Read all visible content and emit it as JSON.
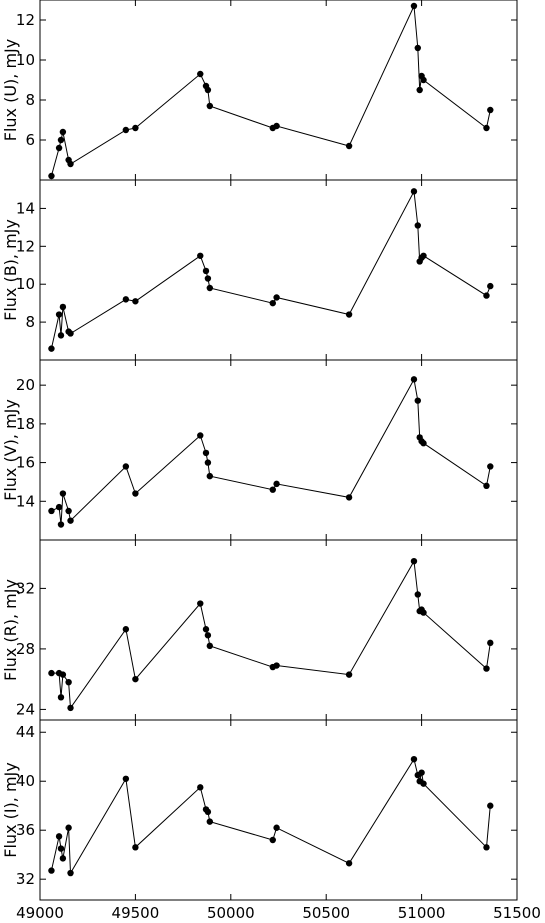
{
  "chart_data": [
    {
      "type": "line",
      "ylabel": "Flux (U), mJy",
      "xlim": [
        49000,
        51500
      ],
      "ylim": [
        4,
        13
      ],
      "yticks": [
        6,
        8,
        10,
        12
      ],
      "x": [
        49060,
        49100,
        49110,
        49120,
        49150,
        49160,
        49450,
        49500,
        49840,
        49870,
        49880,
        49890,
        50220,
        50240,
        50620,
        50960,
        50980,
        50990,
        51000,
        51010,
        51340,
        51360
      ],
      "y": [
        4.2,
        5.6,
        6.0,
        6.4,
        5.0,
        4.8,
        6.5,
        6.6,
        9.3,
        8.7,
        8.5,
        7.7,
        6.6,
        6.7,
        5.7,
        12.7,
        10.6,
        8.5,
        9.2,
        9.0,
        6.6,
        7.5
      ]
    },
    {
      "type": "line",
      "ylabel": "Flux (B), mJy",
      "xlim": [
        49000,
        51500
      ],
      "ylim": [
        6,
        15.5
      ],
      "yticks": [
        8,
        10,
        12,
        14
      ],
      "x": [
        49060,
        49100,
        49110,
        49120,
        49150,
        49160,
        49450,
        49500,
        49840,
        49870,
        49880,
        49890,
        50220,
        50240,
        50620,
        50960,
        50980,
        50990,
        51000,
        51010,
        51340,
        51360
      ],
      "y": [
        6.6,
        8.4,
        7.3,
        8.8,
        7.5,
        7.4,
        9.2,
        9.1,
        11.5,
        10.7,
        10.3,
        9.8,
        9.0,
        9.3,
        8.4,
        14.9,
        13.1,
        11.2,
        11.4,
        11.5,
        9.4,
        9.9
      ]
    },
    {
      "type": "line",
      "ylabel": "Flux (V), mJy",
      "xlim": [
        49000,
        51500
      ],
      "ylim": [
        12,
        21.3
      ],
      "yticks": [
        14,
        16,
        18,
        20
      ],
      "x": [
        49060,
        49100,
        49110,
        49120,
        49150,
        49160,
        49450,
        49500,
        49840,
        49870,
        49880,
        49890,
        50220,
        50240,
        50620,
        50960,
        50980,
        50990,
        51000,
        51010,
        51340,
        51360
      ],
      "y": [
        13.5,
        13.7,
        12.8,
        14.4,
        13.5,
        13.0,
        15.8,
        14.4,
        17.4,
        16.5,
        16.0,
        15.3,
        14.6,
        14.9,
        14.2,
        20.3,
        19.2,
        17.3,
        17.1,
        17.0,
        14.8,
        15.8
      ]
    },
    {
      "type": "line",
      "ylabel": "Flux (R), mJy",
      "xlim": [
        49000,
        51500
      ],
      "ylim": [
        23.3,
        35.2
      ],
      "yticks": [
        24,
        28,
        32
      ],
      "x": [
        49060,
        49100,
        49110,
        49120,
        49150,
        49160,
        49450,
        49500,
        49840,
        49870,
        49880,
        49890,
        50220,
        50240,
        50620,
        50960,
        50980,
        50990,
        51000,
        51010,
        51340,
        51360
      ],
      "y": [
        26.4,
        26.4,
        24.8,
        26.3,
        25.8,
        24.1,
        29.3,
        26.0,
        31.0,
        29.3,
        28.9,
        28.2,
        26.8,
        26.9,
        26.3,
        33.8,
        31.6,
        30.5,
        30.6,
        30.4,
        26.7,
        28.4
      ]
    },
    {
      "type": "line",
      "ylabel": "Flux (I), mJy",
      "xlim": [
        49000,
        51500
      ],
      "ylim": [
        30.3,
        45
      ],
      "yticks": [
        32,
        36,
        40,
        44
      ],
      "xticks": [
        49000,
        49500,
        50000,
        50500,
        51000,
        51500
      ],
      "x": [
        49060,
        49100,
        49110,
        49120,
        49150,
        49160,
        49450,
        49500,
        49840,
        49870,
        49880,
        49890,
        50220,
        50240,
        50620,
        50960,
        50980,
        50990,
        51000,
        51010,
        51340,
        51360
      ],
      "y": [
        32.7,
        35.5,
        34.5,
        33.7,
        36.2,
        32.5,
        40.2,
        34.6,
        39.5,
        37.7,
        37.5,
        36.7,
        35.2,
        36.2,
        33.3,
        41.8,
        40.5,
        40.0,
        40.7,
        39.8,
        34.6,
        38.0
      ]
    }
  ]
}
